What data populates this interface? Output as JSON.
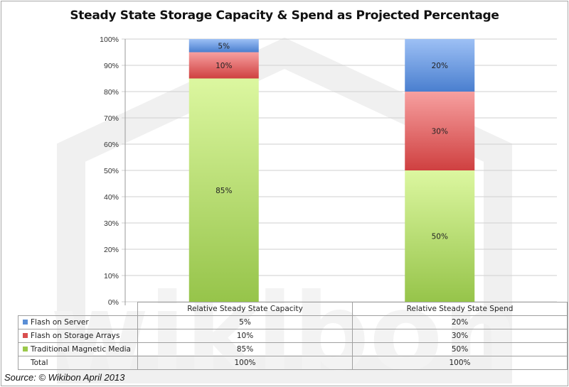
{
  "chart_data": {
    "type": "bar",
    "stacked": true,
    "title": "Steady State Storage Capacity & Spend as Projected Percentage",
    "xlabel": "",
    "ylabel": "",
    "ylim": [
      0,
      100
    ],
    "y_ticks": [
      "0%",
      "10%",
      "20%",
      "30%",
      "40%",
      "50%",
      "60%",
      "70%",
      "80%",
      "90%",
      "100%"
    ],
    "grid": true,
    "categories": [
      "Relative Steady State Capacity",
      "Relative Steady State Spend"
    ],
    "series": [
      {
        "name": "Traditional Magnetic Media",
        "values": [
          85,
          50
        ],
        "labels": [
          "85%",
          "50%"
        ],
        "color": "#9bc94a"
      },
      {
        "name": "Flash on Storage Arrays",
        "values": [
          10,
          30
        ],
        "labels": [
          "10%",
          "30%"
        ],
        "color": "#d94f4f"
      },
      {
        "name": "Flash on Server",
        "values": [
          5,
          20
        ],
        "labels": [
          "5%",
          "20%"
        ],
        "color": "#5b8fd6"
      }
    ],
    "legend": "data-table-below",
    "data_table": {
      "headers": [
        "",
        "Relative Steady State Capacity",
        "Relative Steady State Spend"
      ],
      "rows": [
        {
          "label": "Flash on Server",
          "values": [
            "5%",
            "20%"
          ],
          "swatch": "#5b8fd6"
        },
        {
          "label": "Flash on Storage Arrays",
          "values": [
            "10%",
            "30%"
          ],
          "swatch": "#d94f4f"
        },
        {
          "label": "Traditional Magnetic Media",
          "values": [
            "85%",
            "50%"
          ],
          "swatch": "#9bc94a"
        },
        {
          "label": "Total",
          "values": [
            "100%",
            "100%"
          ],
          "swatch": null
        }
      ]
    }
  },
  "watermark": "wikibon",
  "source": "Source: © Wikibon April 2013"
}
